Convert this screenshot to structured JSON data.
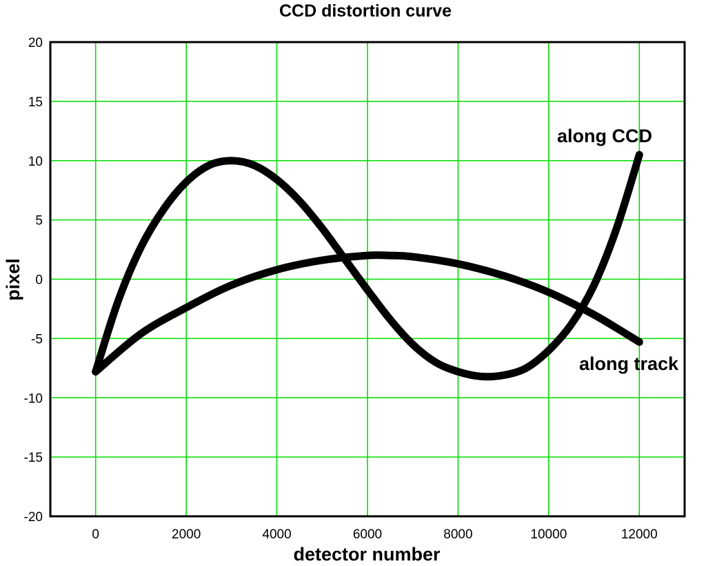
{
  "chart_data": {
    "type": "line",
    "title": "CCD distortion curve",
    "xlabel": "detector number",
    "ylabel": "pixel",
    "xlim": [
      -1000,
      13000
    ],
    "ylim": [
      -20,
      20
    ],
    "x_ticks": [
      0,
      2000,
      4000,
      6000,
      8000,
      10000,
      12000
    ],
    "y_ticks": [
      -20,
      -15,
      -10,
      -5,
      0,
      5,
      10,
      15,
      20
    ],
    "grid": true,
    "grid_color": "#00dd00",
    "line_color": "#000000",
    "series": [
      {
        "name": "along CCD",
        "x": [
          0,
          500,
          1000,
          1500,
          2000,
          2500,
          3000,
          3500,
          4000,
          4500,
          5000,
          5500,
          6000,
          6500,
          7000,
          7500,
          8000,
          8500,
          9000,
          9500,
          10000,
          10500,
          11000,
          11500,
          12000
        ],
        "y": [
          -7.8,
          -1.8,
          2.7,
          5.9,
          8.2,
          9.6,
          10.0,
          9.6,
          8.4,
          6.6,
          4.3,
          1.7,
          -0.9,
          -3.4,
          -5.5,
          -7.0,
          -7.8,
          -8.2,
          -8.1,
          -7.5,
          -6.0,
          -3.8,
          -0.5,
          4.3,
          10.5
        ]
      },
      {
        "name": "along track",
        "x": [
          0,
          1000,
          2000,
          3000,
          4000,
          5000,
          6000,
          6500,
          7000,
          8000,
          9000,
          10000,
          11000,
          12000
        ],
        "y": [
          -7.8,
          -4.6,
          -2.4,
          -0.5,
          0.8,
          1.6,
          2.0,
          2.0,
          1.9,
          1.3,
          0.3,
          -1.1,
          -3.0,
          -5.3
        ]
      }
    ]
  }
}
